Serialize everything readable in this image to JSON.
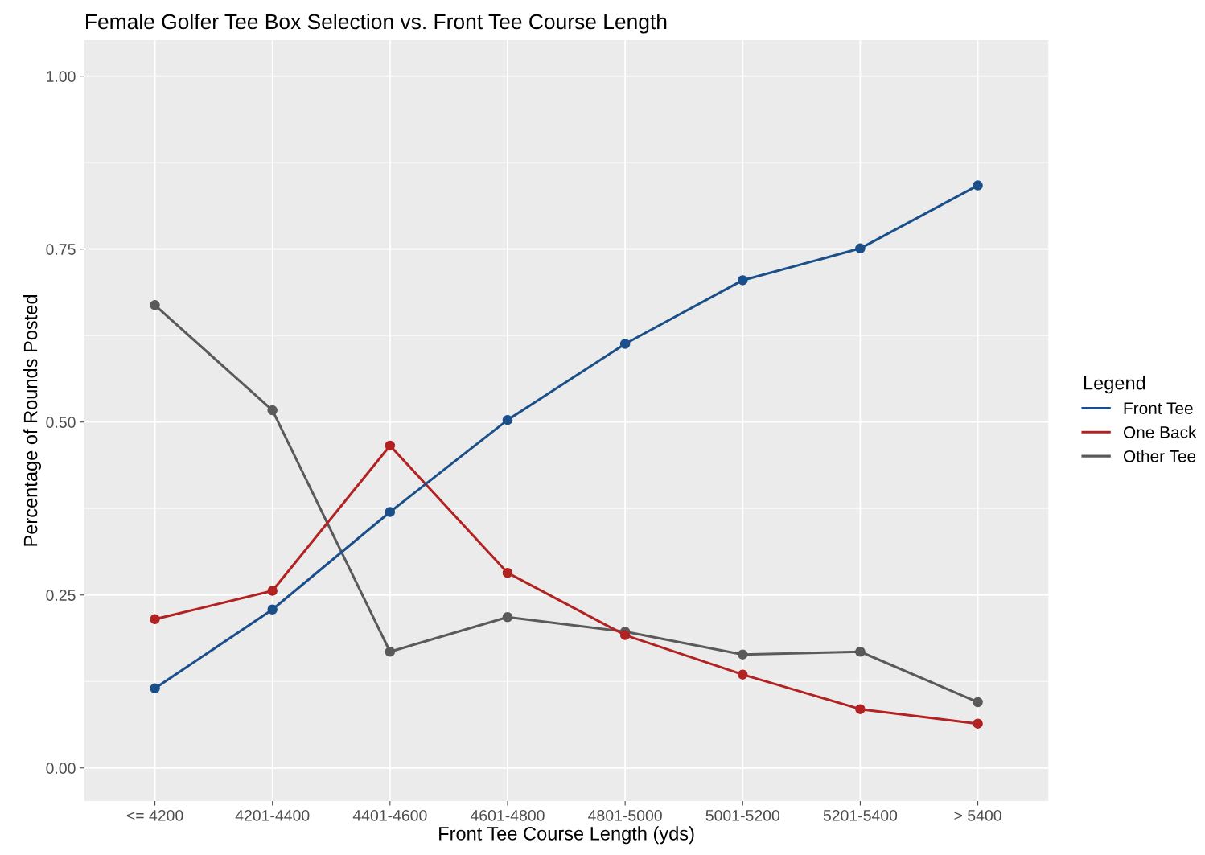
{
  "chart_data": {
    "type": "line",
    "title": "Female Golfer Tee Box Selection vs. Front Tee Course Length",
    "xlabel": "Front Tee Course Length (yds)",
    "ylabel": "Percentage of Rounds Posted",
    "legend_title": "Legend",
    "categories": [
      "<= 4200",
      "4201-4400",
      "4401-4600",
      "4601-4800",
      "4801-5000",
      "5001-5200",
      "5201-5400",
      "> 5400"
    ],
    "series": [
      {
        "name": "Front Tee",
        "color": "#1b4f8a",
        "values": [
          0.115,
          0.229,
          0.37,
          0.503,
          0.613,
          0.705,
          0.751,
          0.842
        ]
      },
      {
        "name": "One Back",
        "color": "#b22222",
        "values": [
          0.215,
          0.256,
          0.466,
          0.282,
          0.192,
          0.135,
          0.085,
          0.064
        ]
      },
      {
        "name": "Other Tee",
        "color": "#5a5a5a",
        "values": [
          0.669,
          0.517,
          0.168,
          0.218,
          0.197,
          0.164,
          0.168,
          0.095
        ]
      }
    ],
    "ylim": [
      -0.048,
      1.052
    ],
    "yticks": [
      {
        "value": 0,
        "label": "0.00"
      },
      {
        "value": 0.25,
        "label": "0.25"
      },
      {
        "value": 0.5,
        "label": "0.50"
      },
      {
        "value": 0.75,
        "label": "0.75"
      },
      {
        "value": 1,
        "label": "1.00"
      }
    ],
    "grid": true,
    "legend": "right",
    "marker": "circle",
    "line_style": "solid"
  }
}
